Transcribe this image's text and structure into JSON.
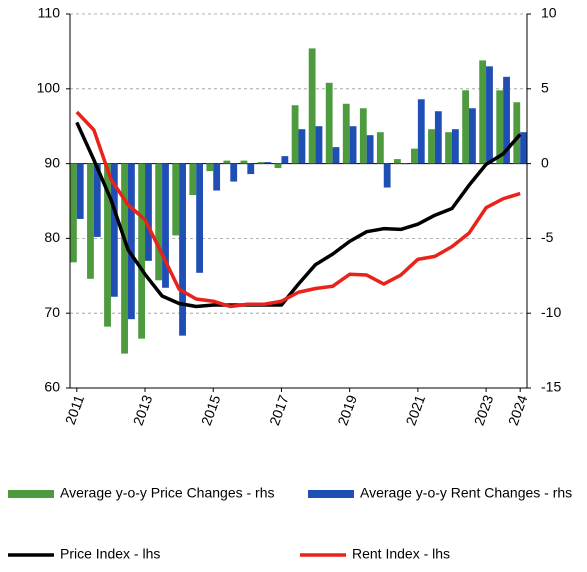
{
  "chart_data": {
    "type": "bar",
    "x": [
      2011,
      2011.5,
      2012,
      2012.5,
      2013,
      2013.5,
      2014,
      2014.5,
      2015,
      2015.5,
      2016,
      2016.5,
      2017,
      2017.5,
      2018,
      2018.5,
      2019,
      2019.5,
      2020,
      2020.5,
      2021,
      2021.5,
      2022,
      2022.5,
      2023,
      2023.5,
      2024
    ],
    "xlim": [
      2010.8,
      2024.2
    ],
    "xticks": [
      2011,
      2013,
      2015,
      2017,
      2019,
      2021,
      2023,
      2024
    ],
    "ylim": [
      60,
      110
    ],
    "yticks": [
      60,
      70,
      80,
      90,
      100,
      110
    ],
    "y2lim": [
      -15,
      10
    ],
    "y2ticks": [
      -15,
      -10,
      -5,
      0,
      5,
      10
    ],
    "grid": true,
    "series": [
      {
        "name": "Average y-o-y Price Changes - rhs",
        "type": "bar",
        "axis": "y2",
        "color": "#4e9a3f",
        "values": [
          -6.6,
          -7.7,
          -10.9,
          -12.7,
          -11.7,
          -7.8,
          -4.8,
          -2.1,
          -0.5,
          0.2,
          0.2,
          0.1,
          -0.3,
          3.9,
          7.7,
          5.4,
          4.0,
          3.7,
          2.1,
          0.3,
          1.0,
          2.3,
          2.1,
          4.9,
          6.9,
          4.9,
          4.1
        ]
      },
      {
        "name": "Average y-o-y Rent Changes - rhs",
        "type": "bar",
        "axis": "y2",
        "color": "#1f4fb4",
        "values": [
          -3.7,
          -4.9,
          -8.9,
          -10.4,
          -6.5,
          -8.3,
          -11.5,
          -7.3,
          -1.8,
          -1.2,
          -0.7,
          0.1,
          0.5,
          2.3,
          2.5,
          1.1,
          2.5,
          1.9,
          -1.6,
          0.0,
          4.3,
          3.5,
          2.3,
          3.7,
          6.5,
          5.8,
          2.1
        ]
      },
      {
        "name": "Price Index - lhs",
        "type": "line",
        "color": "#000000",
        "values": [
          95.5,
          90.5,
          85.2,
          78.5,
          75.2,
          72.3,
          71.3,
          70.9,
          71.1,
          71.1,
          71.1,
          71.1,
          71.1,
          73.9,
          76.5,
          77.9,
          79.6,
          80.9,
          81.3,
          81.2,
          81.9,
          83.1,
          84.0,
          87.1,
          89.9,
          91.3,
          93.9
        ]
      },
      {
        "name": "Rent Index - lhs",
        "type": "line",
        "color": "#e8231a",
        "values": [
          96.9,
          94.5,
          87.9,
          84.5,
          82.5,
          77.9,
          73.2,
          71.9,
          71.6,
          70.9,
          71.2,
          71.2,
          71.6,
          72.8,
          73.3,
          73.6,
          75.2,
          75.1,
          73.9,
          75.1,
          77.2,
          77.6,
          78.9,
          80.7,
          84.1,
          85.3,
          86.0
        ]
      }
    ]
  }
}
